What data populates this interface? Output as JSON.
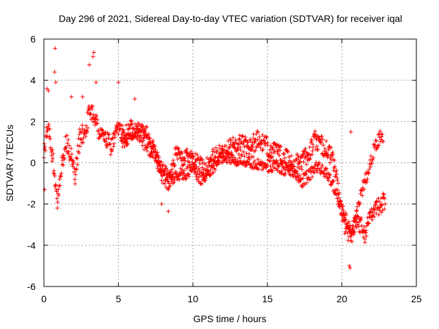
{
  "chart_data": {
    "type": "scatter",
    "title": "Day 296 of 2021, Sidereal Day-to-day VTEC variation (SDTVAR) for receiver iqal",
    "xlabel": "GPS time / hours",
    "ylabel": "SDTVAR / TECUs",
    "xlim": [
      0,
      25
    ],
    "ylim": [
      -6,
      6
    ],
    "xticks": [
      0,
      5,
      10,
      15,
      20,
      25
    ],
    "yticks": [
      -6,
      -4,
      -2,
      0,
      2,
      4,
      6
    ],
    "grid": true,
    "marker": "+",
    "colors": {
      "series": "#ff0000",
      "grid": "#a0a0a0",
      "axes": "#000000"
    },
    "trend": [
      [
        0.0,
        0.6
      ],
      [
        0.3,
        1.8
      ],
      [
        0.6,
        0.2
      ],
      [
        0.9,
        -1.8
      ],
      [
        1.2,
        0.0
      ],
      [
        1.5,
        1.0
      ],
      [
        1.8,
        0.4
      ],
      [
        2.1,
        -0.6
      ],
      [
        2.4,
        1.2
      ],
      [
        2.8,
        1.6
      ],
      [
        3.1,
        2.6
      ],
      [
        3.4,
        2.3
      ],
      [
        3.7,
        1.5
      ],
      [
        4.1,
        1.2
      ],
      [
        4.5,
        0.8
      ],
      [
        5.0,
        1.6
      ],
      [
        5.5,
        1.4
      ],
      [
        6.0,
        1.8
      ],
      [
        6.5,
        1.3
      ],
      [
        7.0,
        0.8
      ],
      [
        7.5,
        0.3
      ],
      [
        8.0,
        -0.6
      ],
      [
        8.4,
        -1.0
      ],
      [
        8.8,
        0.4
      ],
      [
        9.3,
        0.2
      ],
      [
        9.8,
        0.5
      ],
      [
        10.3,
        0.0
      ],
      [
        10.8,
        -0.3
      ],
      [
        11.3,
        0.2
      ],
      [
        11.8,
        0.4
      ],
      [
        12.3,
        0.6
      ],
      [
        12.8,
        0.9
      ],
      [
        13.3,
        1.0
      ],
      [
        13.8,
        0.8
      ],
      [
        14.3,
        1.1
      ],
      [
        14.8,
        0.9
      ],
      [
        15.3,
        0.6
      ],
      [
        15.8,
        0.4
      ],
      [
        16.3,
        0.2
      ],
      [
        16.8,
        -0.1
      ],
      [
        17.3,
        0.1
      ],
      [
        17.8,
        0.5
      ],
      [
        18.2,
        1.1
      ],
      [
        18.6,
        0.9
      ],
      [
        19.0,
        0.6
      ],
      [
        19.4,
        0.2
      ],
      [
        19.7,
        -1.0
      ],
      [
        20.0,
        -2.6
      ],
      [
        20.3,
        -3.2
      ],
      [
        20.6,
        -3.6
      ],
      [
        20.9,
        -2.8
      ],
      [
        21.3,
        -3.0
      ],
      [
        21.6,
        -3.5
      ],
      [
        21.9,
        -2.4
      ],
      [
        22.3,
        -2.2
      ],
      [
        22.6,
        -2.0
      ],
      [
        22.9,
        -1.9
      ]
    ],
    "secondary_trend": [
      [
        5.2,
        1.0
      ],
      [
        5.8,
        1.2
      ],
      [
        6.5,
        1.8
      ],
      [
        7.0,
        1.4
      ],
      [
        7.5,
        0.5
      ],
      [
        8.0,
        -0.3
      ],
      [
        8.5,
        -0.8
      ],
      [
        9.0,
        -0.6
      ],
      [
        9.5,
        -0.5
      ],
      [
        10.0,
        -0.3
      ],
      [
        10.5,
        -0.8
      ],
      [
        11.0,
        -0.5
      ],
      [
        11.5,
        -0.1
      ],
      [
        12.0,
        0.3
      ],
      [
        16.8,
        -0.4
      ],
      [
        17.3,
        -0.9
      ],
      [
        17.8,
        -0.6
      ],
      [
        18.3,
        -0.2
      ],
      [
        18.8,
        -0.4
      ],
      [
        19.3,
        -0.9
      ],
      [
        19.8,
        -1.8
      ],
      [
        20.2,
        -2.6
      ],
      [
        20.6,
        -3.3
      ],
      [
        21.0,
        -2.5
      ],
      [
        21.4,
        -1.2
      ],
      [
        21.8,
        -0.4
      ],
      [
        22.2,
        0.8
      ],
      [
        22.6,
        1.3
      ],
      [
        22.8,
        1.2
      ]
    ],
    "spikes": [
      [
        0.75,
        5.55
      ],
      [
        0.72,
        4.4
      ],
      [
        0.8,
        3.9
      ],
      [
        0.2,
        3.6
      ],
      [
        3.35,
        5.35
      ],
      [
        3.3,
        5.15
      ],
      [
        3.05,
        4.75
      ],
      [
        3.5,
        3.9
      ],
      [
        5.0,
        3.9
      ],
      [
        6.1,
        3.1
      ],
      [
        20.6,
        1.5
      ],
      [
        20.5,
        -5.0
      ],
      [
        20.55,
        -5.1
      ],
      [
        21.55,
        -3.7
      ],
      [
        0.05,
        -1.3
      ],
      [
        0.3,
        3.5
      ],
      [
        1.85,
        3.2
      ],
      [
        2.6,
        3.2
      ],
      [
        8.35,
        -2.35
      ],
      [
        7.9,
        -2.0
      ],
      [
        22.9,
        -2.0
      ]
    ]
  }
}
